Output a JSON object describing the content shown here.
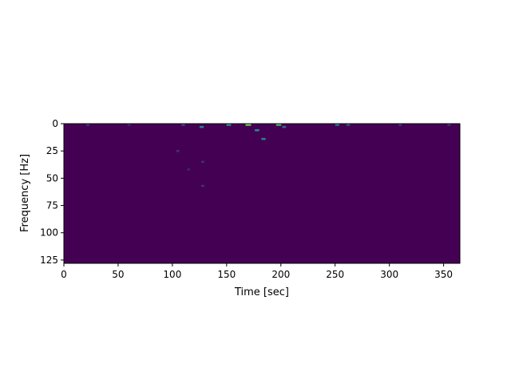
{
  "chart_data": {
    "type": "heatmap",
    "title": "",
    "xlabel": "Time [sec]",
    "ylabel": "Frequency [Hz]",
    "xlim": [
      0,
      365
    ],
    "ylim": [
      128,
      0
    ],
    "y_inverted": true,
    "xticks": [
      0,
      50,
      100,
      150,
      200,
      250,
      300,
      350
    ],
    "yticks": [
      0,
      25,
      50,
      75,
      100,
      125
    ],
    "colormap": "viridis",
    "background_color": "#440154",
    "hotspots": [
      {
        "time": 110,
        "freq": 1,
        "intensity": 0.25
      },
      {
        "time": 127,
        "freq": 3,
        "intensity": 0.45
      },
      {
        "time": 152,
        "freq": 1,
        "intensity": 0.55
      },
      {
        "time": 170,
        "freq": 1,
        "intensity": 0.8
      },
      {
        "time": 178,
        "freq": 6,
        "intensity": 0.5
      },
      {
        "time": 184,
        "freq": 14,
        "intensity": 0.45
      },
      {
        "time": 198,
        "freq": 1,
        "intensity": 0.7
      },
      {
        "time": 203,
        "freq": 3,
        "intensity": 0.35
      },
      {
        "time": 252,
        "freq": 1,
        "intensity": 0.45
      },
      {
        "time": 262,
        "freq": 1,
        "intensity": 0.3
      },
      {
        "time": 105,
        "freq": 25,
        "intensity": 0.15
      },
      {
        "time": 128,
        "freq": 35,
        "intensity": 0.15
      },
      {
        "time": 128,
        "freq": 57,
        "intensity": 0.15
      },
      {
        "time": 115,
        "freq": 42,
        "intensity": 0.12
      },
      {
        "time": 22,
        "freq": 0,
        "intensity": 0.2
      },
      {
        "time": 60,
        "freq": 0,
        "intensity": 0.15
      },
      {
        "time": 310,
        "freq": 0,
        "intensity": 0.2
      },
      {
        "time": 355,
        "freq": 0,
        "intensity": 0.2
      }
    ]
  }
}
